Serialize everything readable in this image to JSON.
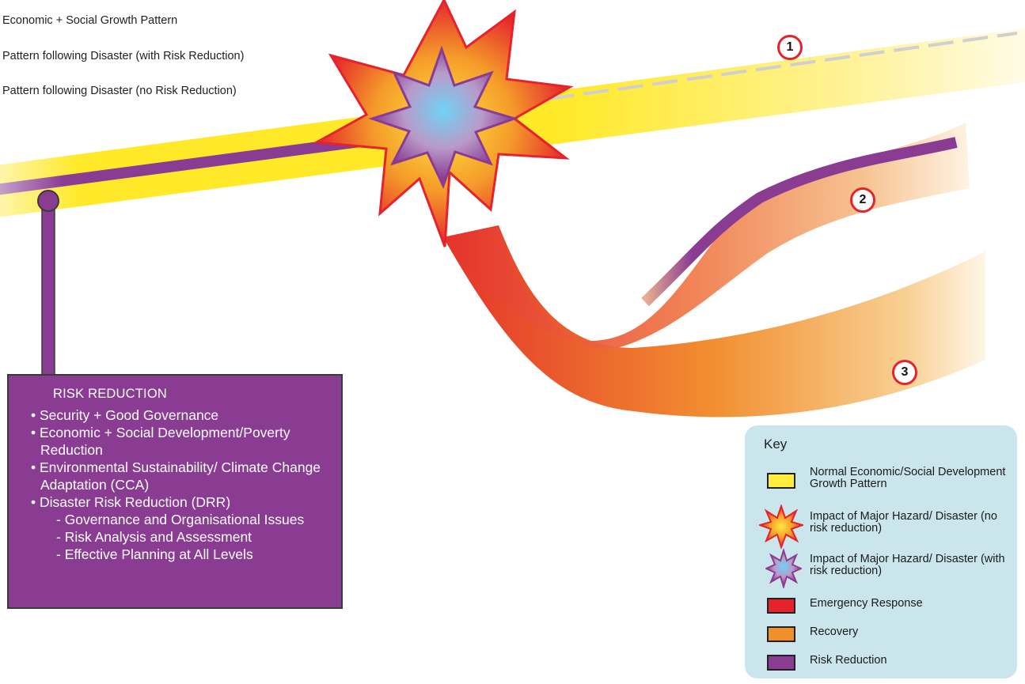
{
  "top_labels": [
    "Economic + Social Growth Pattern",
    "Pattern following Disaster (with Risk Reduction)",
    "Pattern following Disaster (no Risk Reduction)"
  ],
  "markers": [
    "1",
    "2",
    "3"
  ],
  "risk_reduction": {
    "title": "RISK REDUCTION",
    "items": [
      "• Security + Good Governance",
      "• Economic + Social Development/Poverty Reduction",
      "• Environmental Sustainability/ Climate Change Adaptation (CCA)",
      "• Disaster Risk Reduction (DRR)"
    ],
    "subitems": [
      "- Governance and Organisational Issues",
      "- Risk Analysis and Assessment",
      "- Effective Planning at All Levels"
    ]
  },
  "key": {
    "title": "Key",
    "entries": [
      {
        "label": "Normal Economic/Social Development Growth Pattern",
        "color": "#ffec3d",
        "icon": "yellow-swatch-icon"
      },
      {
        "label": "Impact of Major Hazard/ Disaster (no risk reduction)",
        "color": "#f26b22",
        "icon": "orange-explosion-icon"
      },
      {
        "label": "Impact of Major Hazard/ Disaster (with risk reduction)",
        "color": "#8a3c93",
        "icon": "purple-explosion-icon"
      },
      {
        "label": "Emergency Response",
        "color": "#e4232c",
        "icon": "red-swatch-icon"
      },
      {
        "label": "Recovery",
        "color": "#f18f2c",
        "icon": "orange-swatch-icon"
      },
      {
        "label": "Risk Reduction",
        "color": "#8a3c93",
        "icon": "purple-swatch-icon"
      }
    ]
  },
  "colors": {
    "growth_band": "#ffe93a",
    "risk_reduction": "#8a3c93",
    "emergency": "#e4232c",
    "recovery": "#f18f2c",
    "marker_ring": "#e4232c"
  }
}
